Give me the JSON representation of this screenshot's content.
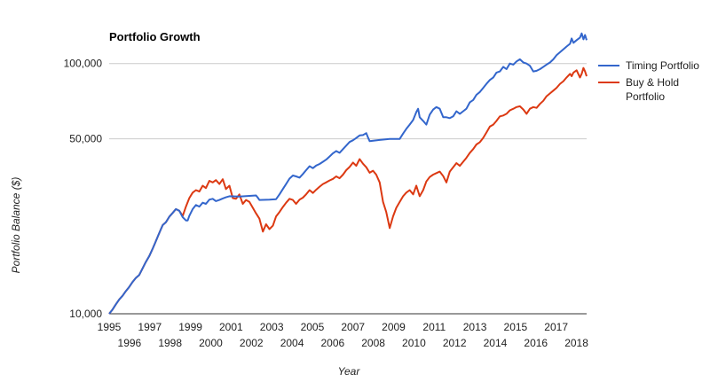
{
  "chart_data": {
    "type": "line",
    "title": "Portfolio Growth",
    "xlabel": "Year",
    "ylabel": "Portfolio Balance ($)",
    "y_scale": "log",
    "ylim": [
      10000,
      150000
    ],
    "xlim": [
      1995.0,
      2018.83
    ],
    "grid": "horizontal",
    "legend_position": "right",
    "y_ticks": [
      {
        "value": 10000,
        "label": "10,000"
      },
      {
        "value": 50000,
        "label": "50,000"
      },
      {
        "value": 100000,
        "label": "100,000"
      }
    ],
    "x_ticks_row1": [
      "1995",
      "1997",
      "1999",
      "2001",
      "2003",
      "2005",
      "2007",
      "2009",
      "2011",
      "2013",
      "2015",
      "2017"
    ],
    "x_ticks_row2": [
      "1996",
      "1998",
      "2000",
      "2002",
      "2004",
      "2006",
      "2008",
      "2010",
      "2012",
      "2014",
      "2016",
      "2018"
    ],
    "series": [
      {
        "name": "Timing Portfolio",
        "color": "#3366cc",
        "x": [
          1995.0,
          1995.17,
          1995.33,
          1995.5,
          1995.67,
          1995.83,
          1996.0,
          1996.17,
          1996.33,
          1996.5,
          1996.67,
          1996.83,
          1997.0,
          1997.17,
          1997.33,
          1997.5,
          1997.67,
          1997.83,
          1998.0,
          1998.17,
          1998.33,
          1998.5,
          1998.67,
          1998.83,
          1998.92,
          1999.0,
          1999.17,
          1999.33,
          1999.5,
          1999.67,
          1999.83,
          2000.0,
          2000.17,
          2000.33,
          2000.5,
          2000.67,
          2000.83,
          2001.0,
          2001.5,
          2002.0,
          2002.33,
          2002.42,
          2002.5,
          2003.0,
          2003.33,
          2003.5,
          2003.67,
          2003.83,
          2004.0,
          2004.17,
          2004.33,
          2004.5,
          2004.67,
          2004.83,
          2005.0,
          2005.17,
          2005.33,
          2005.5,
          2005.67,
          2005.83,
          2006.0,
          2006.17,
          2006.33,
          2006.5,
          2006.67,
          2006.83,
          2007.0,
          2007.17,
          2007.33,
          2007.5,
          2007.67,
          2007.83,
          2007.92,
          2008.0,
          2008.5,
          2009.0,
          2009.5,
          2009.67,
          2009.83,
          2010.0,
          2010.17,
          2010.33,
          2010.42,
          2010.5,
          2010.67,
          2010.83,
          2011.0,
          2011.17,
          2011.33,
          2011.5,
          2011.67,
          2011.83,
          2012.0,
          2012.17,
          2012.33,
          2012.5,
          2012.67,
          2012.83,
          2013.0,
          2013.17,
          2013.33,
          2013.5,
          2013.67,
          2013.83,
          2014.0,
          2014.17,
          2014.33,
          2014.5,
          2014.67,
          2014.83,
          2015.0,
          2015.17,
          2015.33,
          2015.5,
          2015.67,
          2015.83,
          2016.0,
          2016.17,
          2016.33,
          2016.5,
          2016.67,
          2016.83,
          2017.0,
          2017.17,
          2017.33,
          2017.5,
          2017.67,
          2017.83,
          2018.0,
          2018.08,
          2018.17,
          2018.33,
          2018.5,
          2018.58,
          2018.67,
          2018.75,
          2018.83
        ],
        "values": [
          10000,
          10400,
          10900,
          11400,
          11800,
          12300,
          12800,
          13400,
          13900,
          14300,
          15200,
          16100,
          17000,
          18200,
          19500,
          21000,
          22600,
          23200,
          24400,
          25300,
          26200,
          25800,
          24300,
          23600,
          23600,
          24600,
          26200,
          27200,
          26800,
          27800,
          27500,
          28600,
          28800,
          28200,
          28500,
          28900,
          29200,
          29500,
          29400,
          29600,
          29700,
          29100,
          28500,
          28600,
          28700,
          30000,
          31500,
          33000,
          34700,
          35700,
          35400,
          35000,
          36200,
          37500,
          38900,
          38200,
          39100,
          39700,
          40500,
          41300,
          42500,
          43800,
          44700,
          44000,
          45500,
          47000,
          48600,
          49400,
          50400,
          51600,
          51800,
          52700,
          50600,
          49000,
          49500,
          50000,
          50000,
          52500,
          54800,
          57000,
          59500,
          64000,
          66000,
          61000,
          59000,
          57000,
          62500,
          65500,
          67000,
          66000,
          61000,
          61000,
          60500,
          61500,
          64500,
          63000,
          64500,
          66000,
          70000,
          71500,
          75000,
          77000,
          80000,
          83000,
          86000,
          88000,
          92000,
          93000,
          97000,
          95000,
          100000,
          99000,
          102000,
          104000,
          101000,
          100000,
          98000,
          93000,
          93500,
          95000,
          97000,
          99000,
          101000,
          104000,
          108000,
          111000,
          114000,
          117000,
          120000,
          126000,
          121000,
          124000,
          127000,
          132000,
          125000,
          130000,
          124000
        ]
      },
      {
        "name": "Buy & Hold Portfolio",
        "color": "#dc3912",
        "x": [
          1995.0,
          1995.17,
          1995.33,
          1995.5,
          1995.67,
          1995.83,
          1996.0,
          1996.17,
          1996.33,
          1996.5,
          1996.67,
          1996.83,
          1997.0,
          1997.17,
          1997.33,
          1997.5,
          1997.67,
          1997.83,
          1998.0,
          1998.17,
          1998.33,
          1998.5,
          1998.67,
          1998.83,
          1999.0,
          1999.17,
          1999.33,
          1999.5,
          1999.67,
          1999.83,
          2000.0,
          2000.17,
          2000.33,
          2000.5,
          2000.67,
          2000.83,
          2001.0,
          2001.17,
          2001.33,
          2001.5,
          2001.67,
          2001.83,
          2002.0,
          2002.17,
          2002.33,
          2002.5,
          2002.67,
          2002.83,
          2003.0,
          2003.17,
          2003.33,
          2003.5,
          2003.67,
          2003.83,
          2004.0,
          2004.17,
          2004.33,
          2004.5,
          2004.67,
          2004.83,
          2005.0,
          2005.17,
          2005.33,
          2005.5,
          2005.67,
          2005.83,
          2006.0,
          2006.17,
          2006.33,
          2006.5,
          2006.67,
          2006.83,
          2007.0,
          2007.17,
          2007.33,
          2007.5,
          2007.67,
          2007.83,
          2008.0,
          2008.17,
          2008.33,
          2008.5,
          2008.67,
          2008.83,
          2009.0,
          2009.17,
          2009.33,
          2009.5,
          2009.67,
          2009.83,
          2010.0,
          2010.17,
          2010.33,
          2010.5,
          2010.67,
          2010.83,
          2011.0,
          2011.17,
          2011.33,
          2011.5,
          2011.67,
          2011.83,
          2012.0,
          2012.17,
          2012.33,
          2012.5,
          2012.67,
          2012.83,
          2013.0,
          2013.17,
          2013.33,
          2013.5,
          2013.67,
          2013.83,
          2014.0,
          2014.17,
          2014.33,
          2014.5,
          2014.67,
          2014.83,
          2015.0,
          2015.17,
          2015.33,
          2015.5,
          2015.67,
          2015.83,
          2016.0,
          2016.17,
          2016.33,
          2016.5,
          2016.67,
          2016.83,
          2017.0,
          2017.17,
          2017.33,
          2017.5,
          2017.67,
          2017.83,
          2018.0,
          2018.08,
          2018.17,
          2018.33,
          2018.5,
          2018.58,
          2018.67,
          2018.75,
          2018.83
        ],
        "values": [
          10000,
          10400,
          10900,
          11400,
          11800,
          12300,
          12800,
          13400,
          13900,
          14300,
          15200,
          16100,
          17000,
          18200,
          19500,
          21000,
          22600,
          23200,
          24400,
          25300,
          26200,
          25800,
          24600,
          26800,
          29000,
          30500,
          31200,
          30800,
          32500,
          31800,
          34000,
          33500,
          34200,
          33000,
          34500,
          31500,
          32500,
          29000,
          28800,
          30000,
          27500,
          28500,
          28000,
          26500,
          25200,
          24000,
          21300,
          22800,
          21800,
          22500,
          24500,
          25500,
          26700,
          27800,
          28800,
          28500,
          27500,
          28600,
          29100,
          30000,
          31200,
          30400,
          31300,
          32200,
          33000,
          33500,
          34100,
          34600,
          35400,
          34800,
          36000,
          37500,
          38600,
          40200,
          39000,
          41500,
          39800,
          38500,
          36600,
          37300,
          36000,
          33500,
          28000,
          25500,
          22000,
          24500,
          26500,
          28000,
          29500,
          30500,
          31200,
          30000,
          32500,
          29500,
          31200,
          33800,
          35200,
          36000,
          36500,
          37000,
          35500,
          33500,
          37000,
          38500,
          40000,
          39000,
          40500,
          42000,
          44000,
          45500,
          47500,
          48500,
          50500,
          53000,
          56000,
          57000,
          59000,
          61500,
          62000,
          63000,
          65000,
          66000,
          67000,
          67500,
          65500,
          63000,
          66000,
          67000,
          66500,
          69000,
          71000,
          74000,
          76000,
          78000,
          80000,
          83000,
          85000,
          88000,
          91000,
          89000,
          92000,
          94000,
          88000,
          91000,
          96000,
          93000,
          89000
        ]
      }
    ]
  }
}
